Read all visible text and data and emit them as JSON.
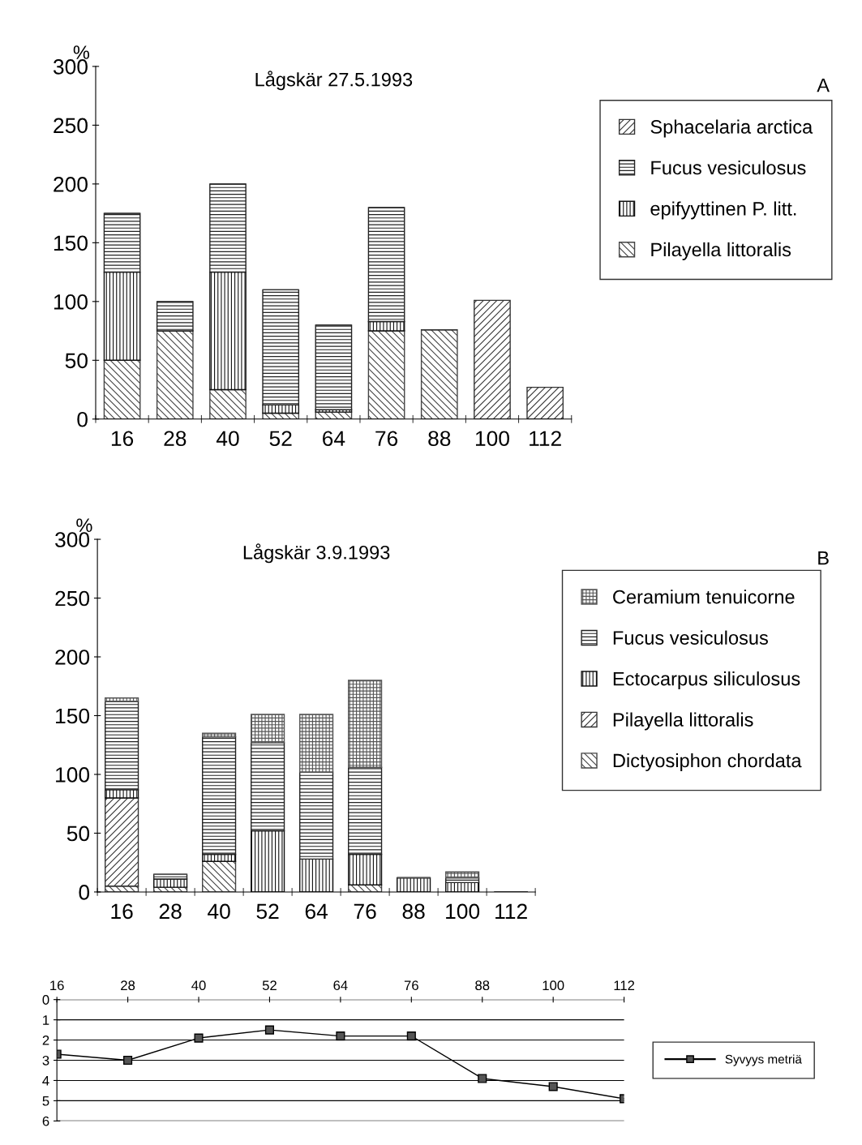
{
  "chart_data": [
    {
      "type": "bar",
      "title": "Lågskär 27.5.1993",
      "ylabel": "%",
      "annotations": [
        "A"
      ],
      "stacked": true,
      "categories": [
        "16",
        "28",
        "40",
        "52",
        "64",
        "76",
        "88",
        "100",
        "112"
      ],
      "ylim": [
        0,
        300
      ],
      "yticks": [
        0,
        50,
        100,
        150,
        200,
        250,
        300
      ],
      "grid": false,
      "legend": "right",
      "series": [
        {
          "name": "Pilayella littoralis",
          "color": "#444444",
          "values": [
            50,
            75,
            25,
            5,
            6,
            75,
            76,
            0,
            0
          ]
        },
        {
          "name": "epifyyttinen P. litt.",
          "color": "#111111",
          "values": [
            75,
            0,
            100,
            7,
            2,
            8,
            0,
            0,
            0
          ]
        },
        {
          "name": "Fucus vesiculosus",
          "color": "#222222",
          "values": [
            50,
            25,
            75,
            98,
            72,
            97,
            0,
            0,
            0
          ]
        },
        {
          "name": "Sphacelaria arctica",
          "color": "#333333",
          "values": [
            0,
            0,
            0,
            0,
            0,
            0,
            0,
            101,
            27
          ]
        }
      ]
    },
    {
      "type": "bar",
      "title": "Lågskär 3.9.1993",
      "ylabel": "%",
      "annotations": [
        "B"
      ],
      "stacked": true,
      "categories": [
        "16",
        "28",
        "40",
        "52",
        "64",
        "76",
        "88",
        "100",
        "112"
      ],
      "ylim": [
        0,
        300
      ],
      "yticks": [
        0,
        50,
        100,
        150,
        200,
        250,
        300
      ],
      "grid": false,
      "legend": "right",
      "series": [
        {
          "name": "Dictyosiphon chordata",
          "color": "#444444",
          "values": [
            5,
            4,
            26,
            0,
            0,
            6,
            0,
            0,
            0
          ]
        },
        {
          "name": "Pilayella littoralis",
          "color": "#333333",
          "values": [
            75,
            0,
            0,
            0,
            0,
            0,
            0,
            0,
            0
          ]
        },
        {
          "name": "Ectocarpus siliculosus",
          "color": "#111111",
          "values": [
            7,
            7,
            6,
            52,
            28,
            26,
            12,
            8,
            0
          ]
        },
        {
          "name": "Fucus vesiculosus",
          "color": "#222222",
          "values": [
            75,
            4,
            100,
            75,
            74,
            74,
            0,
            4,
            0
          ]
        },
        {
          "name": "Ceramium tenuicorne",
          "color": "#555555",
          "values": [
            3,
            0,
            3,
            24,
            49,
            74,
            0,
            5,
            0
          ]
        }
      ]
    },
    {
      "type": "line",
      "categories": [
        "16",
        "28",
        "40",
        "52",
        "64",
        "76",
        "88",
        "100",
        "112"
      ],
      "ylim": [
        6,
        0
      ],
      "yticks": [
        0,
        1,
        2,
        3,
        4,
        5,
        6
      ],
      "grid": "y",
      "legend": "right",
      "marker": "square",
      "line_style": "solid",
      "series": [
        {
          "name": "Syvyys metriä",
          "color": "#000000",
          "values": [
            2.7,
            3.0,
            1.9,
            1.5,
            1.8,
            1.8,
            3.9,
            4.3,
            4.9
          ]
        }
      ]
    }
  ]
}
